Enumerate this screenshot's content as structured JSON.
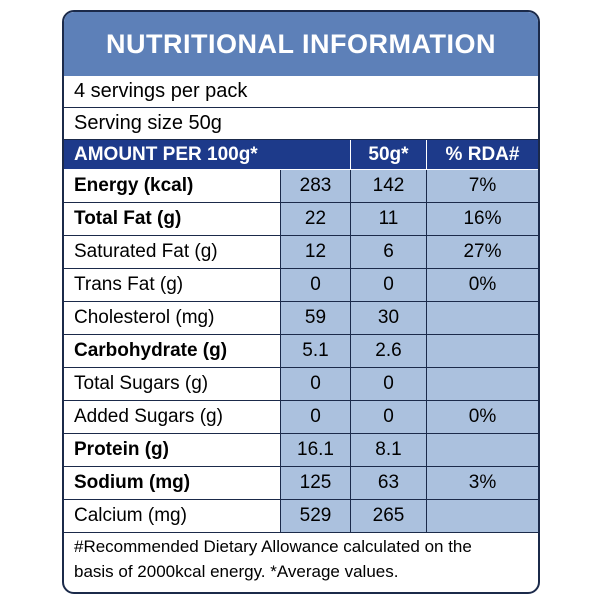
{
  "header": {
    "title": "NUTRITIONAL INFORMATION"
  },
  "servings": "4 servings per pack",
  "serving_size": "Serving size 50g",
  "table": {
    "columns": [
      "AMOUNT PER 100g*",
      "50g*",
      "% RDA#"
    ],
    "rows": [
      {
        "name": "Energy (kcal)",
        "bold": true,
        "cells": [
          "283",
          "142",
          "7%"
        ]
      },
      {
        "name": "Total Fat (g)",
        "bold": true,
        "cells": [
          "22",
          "11",
          "16%"
        ]
      },
      {
        "name": "Saturated Fat (g)",
        "bold": false,
        "cells": [
          "12",
          "6",
          "27%"
        ]
      },
      {
        "name": "Trans Fat (g)",
        "bold": false,
        "cells": [
          "0",
          "0",
          "0%"
        ]
      },
      {
        "name": "Cholesterol (mg)",
        "bold": false,
        "cells": [
          "59",
          "30",
          null
        ]
      },
      {
        "name": "Carbohydrate (g)",
        "bold": true,
        "cells": [
          "5.1",
          "2.6",
          null
        ]
      },
      {
        "name": "Total Sugars (g)",
        "bold": false,
        "cells": [
          "0",
          "0",
          null
        ]
      },
      {
        "name": "Added Sugars (g)",
        "bold": false,
        "cells": [
          "0",
          "0",
          "0%"
        ]
      },
      {
        "name": "Protein (g)",
        "bold": true,
        "cells": [
          "16.1",
          "8.1",
          null
        ]
      },
      {
        "name": "Sodium (mg)",
        "bold": true,
        "cells": [
          "125",
          "63",
          "3%"
        ]
      },
      {
        "name": "Calcium (mg)",
        "bold": false,
        "cells": [
          "529",
          "265",
          null
        ]
      }
    ]
  },
  "footer": [
    "#Recommended Dietary Allowance calculated on the",
    "basis of 2000kcal energy.  *Average values."
  ]
}
